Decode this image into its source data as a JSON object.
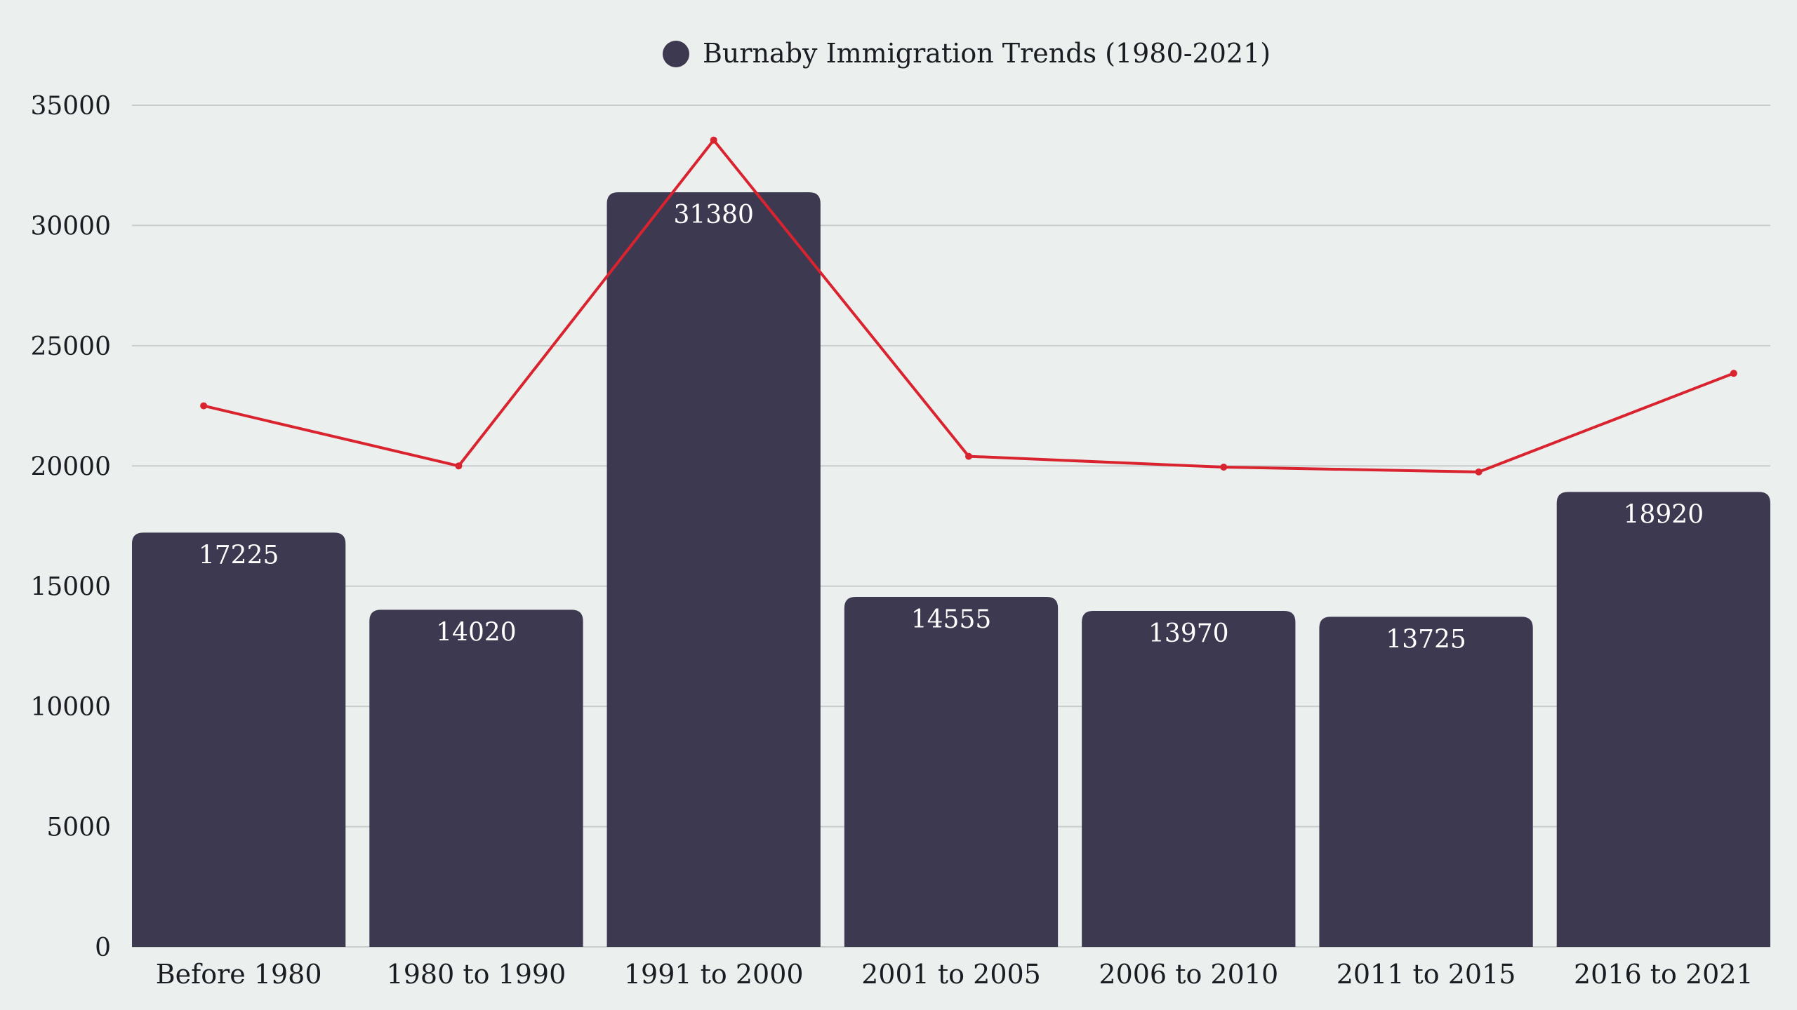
{
  "chart_data": {
    "type": "bar",
    "legend": {
      "position": "top-center",
      "entries": [
        "Burnaby Immigration Trends (1980-2021)"
      ]
    },
    "categories": [
      "Before 1980",
      "1980 to 1990",
      "1991 to 2000",
      "2001 to 2005",
      "2006 to 2010",
      "2011 to 2015",
      "2016 to 2021"
    ],
    "series": [
      {
        "name": "Burnaby Immigration Trends (1980-2021)",
        "type": "bar",
        "values": [
          17225,
          14020,
          31380,
          14555,
          13970,
          13725,
          18920
        ],
        "color": "#3d3950"
      },
      {
        "type": "line",
        "values": [
          22500,
          20000,
          33550,
          20400,
          19950,
          19750,
          23850
        ],
        "color": "#d9232e"
      }
    ],
    "ylim": [
      0,
      35000
    ],
    "yticks": [
      0,
      5000,
      10000,
      15000,
      20000,
      25000,
      30000,
      35000
    ],
    "grid": true,
    "xlabel": "",
    "ylabel": ""
  }
}
